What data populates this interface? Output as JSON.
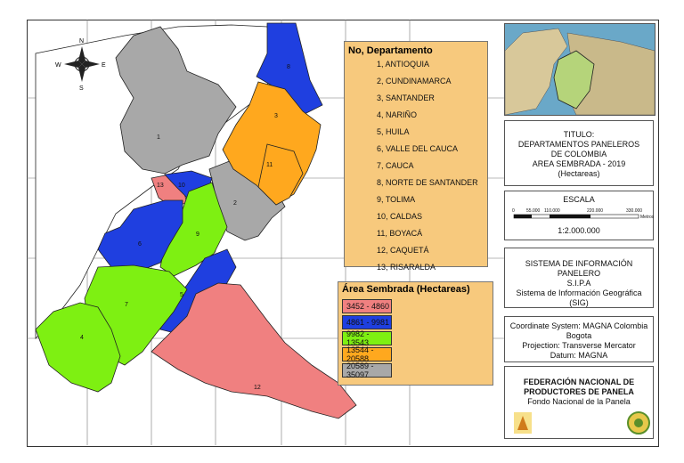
{
  "compass": {
    "n": "N",
    "s": "S",
    "e": "E",
    "w": "W"
  },
  "legend_departments": {
    "title": "No, Departamento",
    "items": [
      "1, ANTIOQUIA",
      "2, CUNDINAMARCA",
      "3, SANTANDER",
      "4, NARIÑO",
      "5, HUILA",
      "6, VALLE DEL CAUCA",
      "7, CAUCA",
      "8, NORTE DE SANTANDER",
      "9, TOLIMA",
      "10, CALDAS",
      "11, BOYACÁ",
      "12, CAQUETÁ",
      "13, RISARALDA"
    ]
  },
  "legend_area": {
    "title": "Área Sembrada (Hectareas)",
    "classes": [
      {
        "label": "3452 - 4860",
        "color": "#f08080"
      },
      {
        "label": "4861 - 9981",
        "color": "#1f3fe0"
      },
      {
        "label": "9982 - 13543",
        "color": "#7ef012"
      },
      {
        "label": "13544 - 20588",
        "color": "#ffa81e"
      },
      {
        "label": "20589 - 35097",
        "color": "#a8a8a8"
      }
    ]
  },
  "map_labels": [
    "1",
    "2",
    "3",
    "4",
    "5",
    "6",
    "7",
    "8",
    "9",
    "10",
    "11",
    "12",
    "13"
  ],
  "title_panel": {
    "lines": [
      "TITULO:",
      "DEPARTAMENTOS PANELEROS",
      "DE COLOMBIA",
      "AREA SEMBRADA - 2019",
      "(Hectareas)"
    ]
  },
  "scale_panel": {
    "title": "ESCALA",
    "ticks": [
      "0",
      "55.000",
      "110.000",
      "220.000",
      "330.000"
    ],
    "unit": "Metros",
    "ratio": "1:2.000.000"
  },
  "sipa_panel": {
    "lines": [
      "SISTEMA DE INFORMACIÓN",
      "PANELERO",
      "S.I.P.A",
      "Sistema de Información Geográfica",
      "(SIG)"
    ]
  },
  "coords_panel": {
    "lines": [
      "Coordinate System: MAGNA Colombia",
      "Bogota",
      "Projection: Transverse Mercator",
      "Datum: MAGNA"
    ]
  },
  "fed_panel": {
    "lines": [
      "FEDERACIÓN NACIONAL DE",
      "PRODUCTORES DE PANELA",
      "Fondo Nacional de la Panela"
    ]
  }
}
